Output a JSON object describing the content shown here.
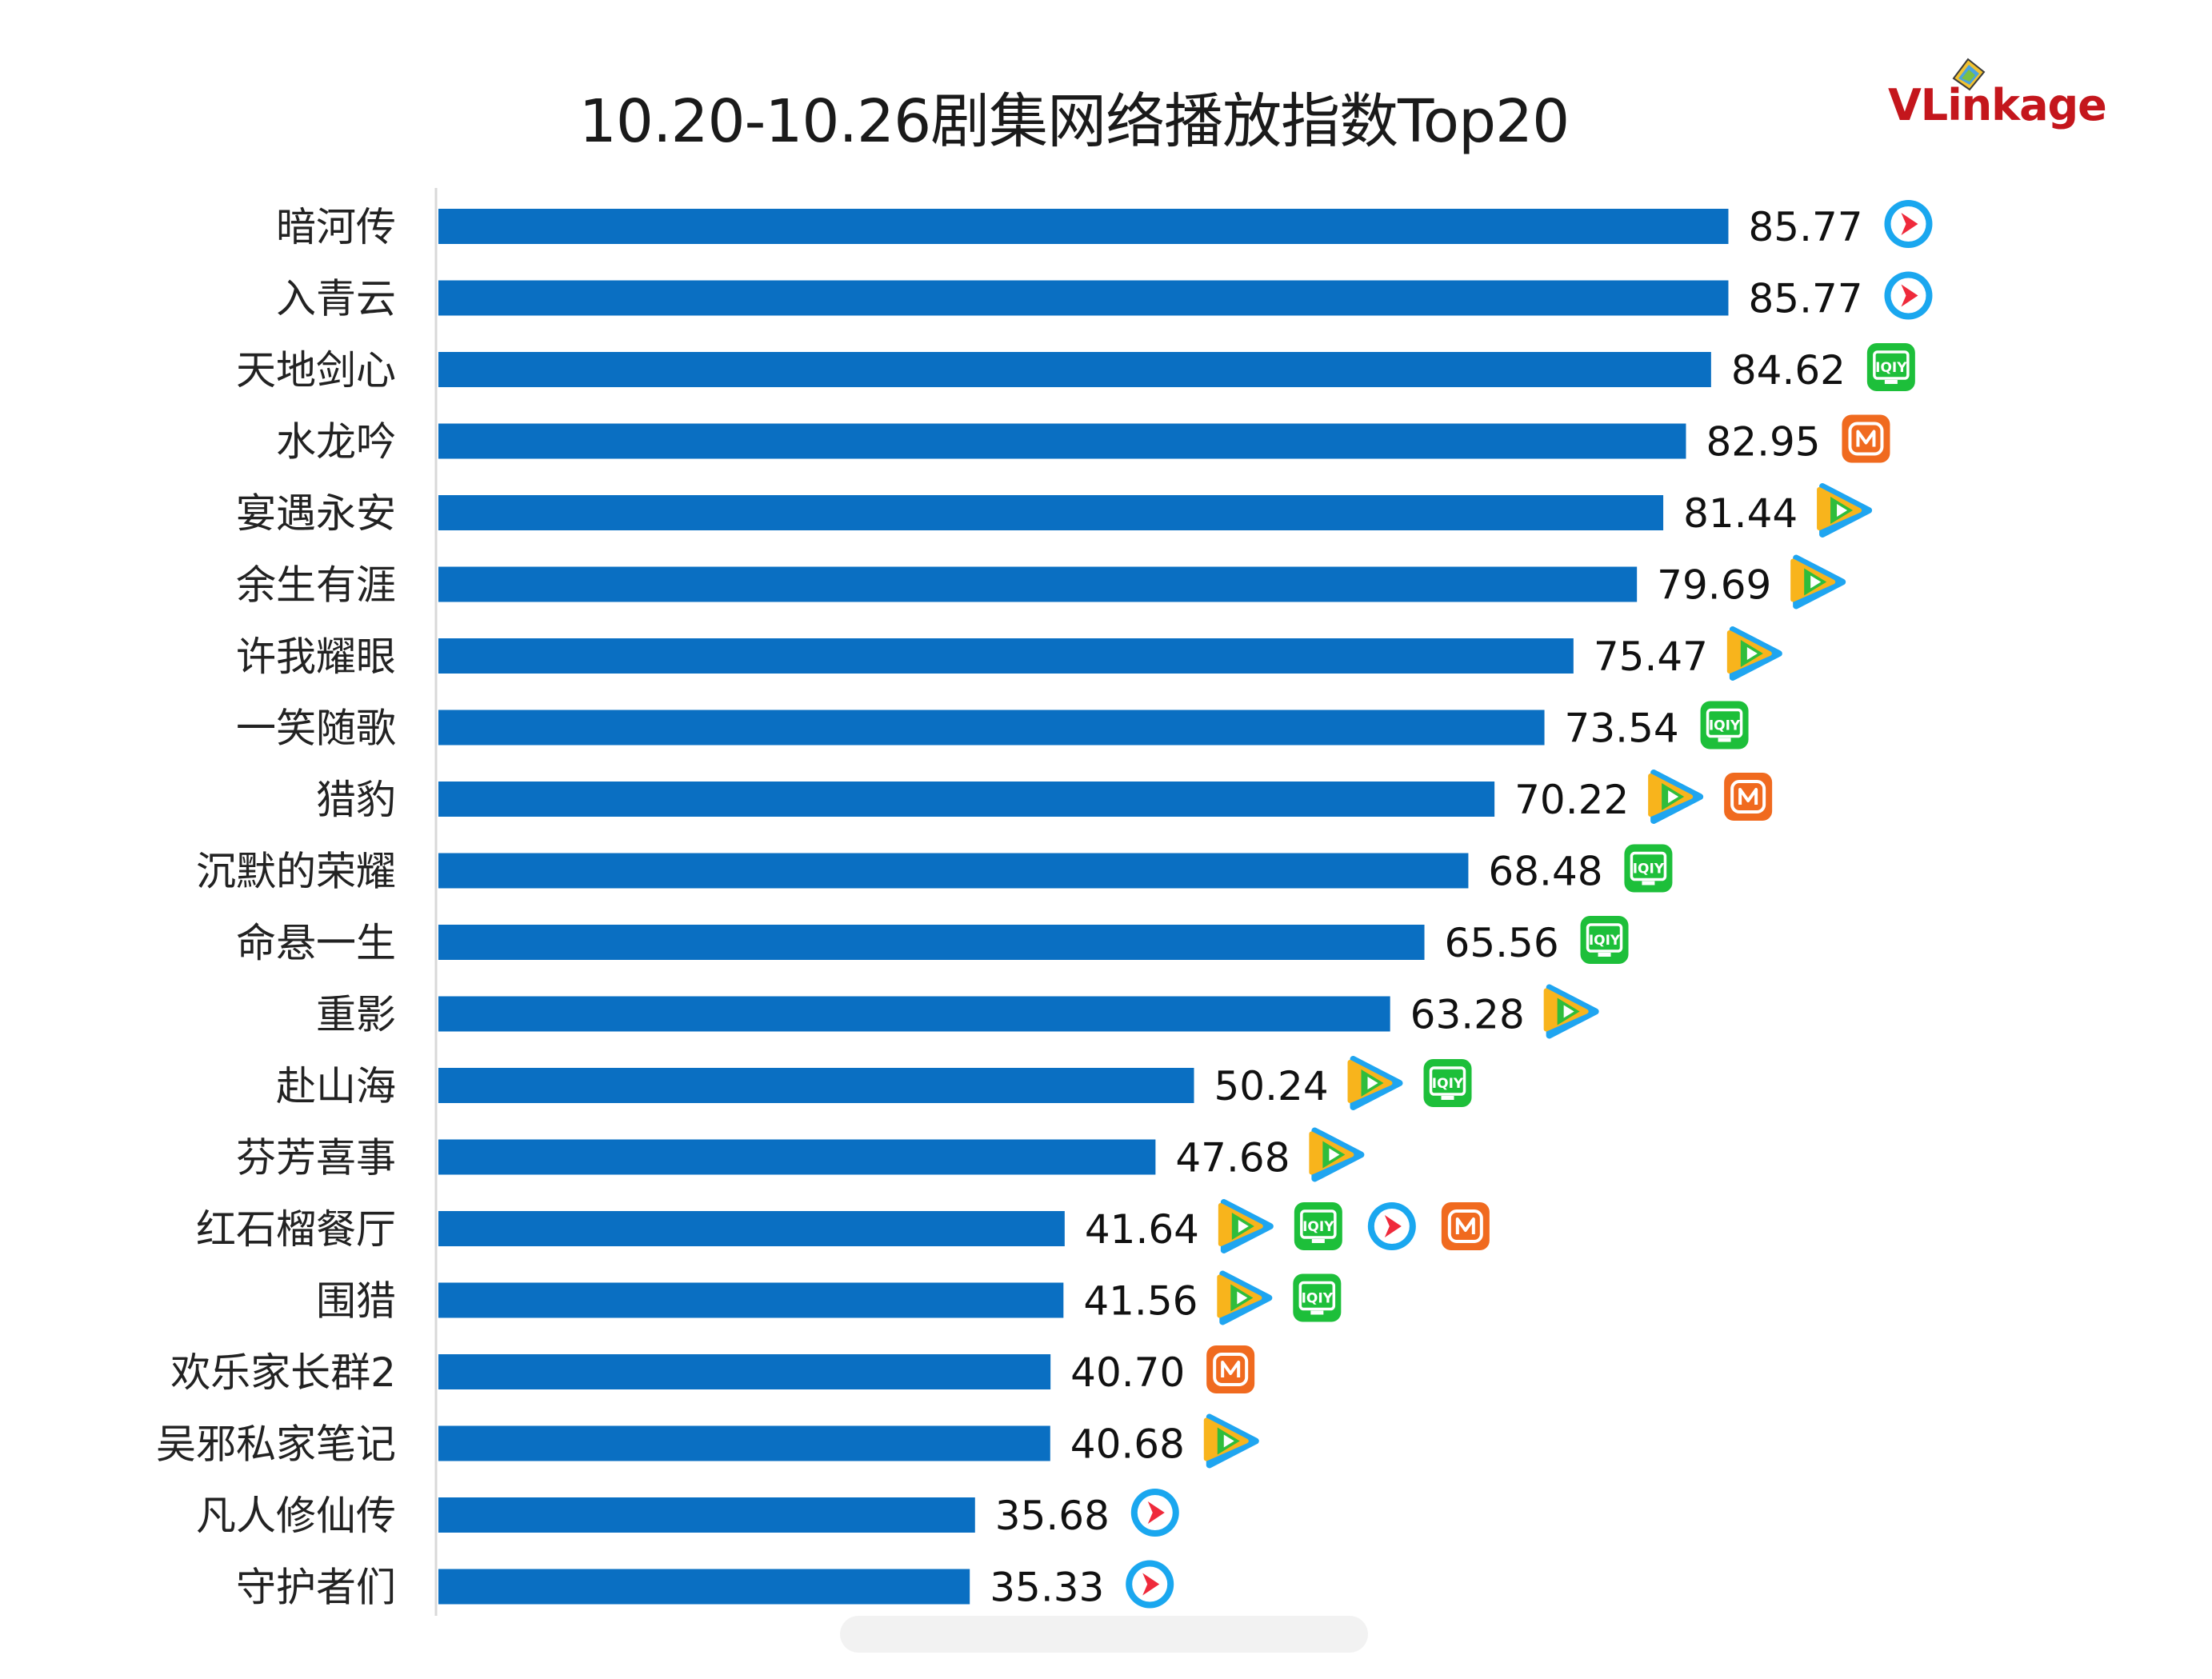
{
  "title": "10.20-10.26剧集网络播放指数Top20",
  "logo": {
    "text_prefix": "VL",
    "text_rest": "inkage"
  },
  "colors": {
    "bar": "#0a6fc2",
    "axis": "#d9d9d9"
  },
  "chart_data": {
    "type": "bar",
    "orientation": "horizontal",
    "title": "10.20-10.26剧集网络播放指数Top20",
    "xlabel": "",
    "ylabel": "",
    "xlim": [
      0,
      90
    ],
    "categories": [
      "暗河传",
      "入青云",
      "天地剑心",
      "水龙吟",
      "宴遇永安",
      "余生有涯",
      "许我耀眼",
      "一笑随歌",
      "猎豹",
      "沉默的荣耀",
      "命悬一生",
      "重影",
      "赴山海",
      "芬芳喜事",
      "红石榴餐厅",
      "围猎",
      "欢乐家长群2",
      "吴邪私家笔记",
      "凡人修仙传",
      "守护者们"
    ],
    "values": [
      85.77,
      85.77,
      84.62,
      82.95,
      81.44,
      79.69,
      75.47,
      73.54,
      70.22,
      68.48,
      65.56,
      63.28,
      50.24,
      47.68,
      41.64,
      41.56,
      40.7,
      40.68,
      35.68,
      35.33
    ],
    "value_labels": [
      "85.77",
      "85.77",
      "84.62",
      "82.95",
      "81.44",
      "79.69",
      "75.47",
      "73.54",
      "70.22",
      "68.48",
      "65.56",
      "63.28",
      "50.24",
      "47.68",
      "41.64",
      "41.56",
      "40.70",
      "40.68",
      "35.68",
      "35.33"
    ],
    "platforms": [
      [
        "youku"
      ],
      [
        "youku"
      ],
      [
        "iqiyi"
      ],
      [
        "mgtv"
      ],
      [
        "tencent"
      ],
      [
        "tencent"
      ],
      [
        "tencent"
      ],
      [
        "iqiyi"
      ],
      [
        "tencent",
        "mgtv"
      ],
      [
        "iqiyi"
      ],
      [
        "iqiyi"
      ],
      [
        "tencent"
      ],
      [
        "tencent",
        "iqiyi"
      ],
      [
        "tencent"
      ],
      [
        "tencent",
        "iqiyi",
        "youku",
        "mgtv"
      ],
      [
        "tencent",
        "iqiyi"
      ],
      [
        "mgtv"
      ],
      [
        "tencent"
      ],
      [
        "youku"
      ],
      [
        "youku"
      ]
    ],
    "legend_icons": {
      "youku": "youku-icon",
      "iqiyi": "iqiyi-icon",
      "mgtv": "mgtv-icon",
      "tencent": "tencent-video-icon"
    },
    "grid": false
  }
}
